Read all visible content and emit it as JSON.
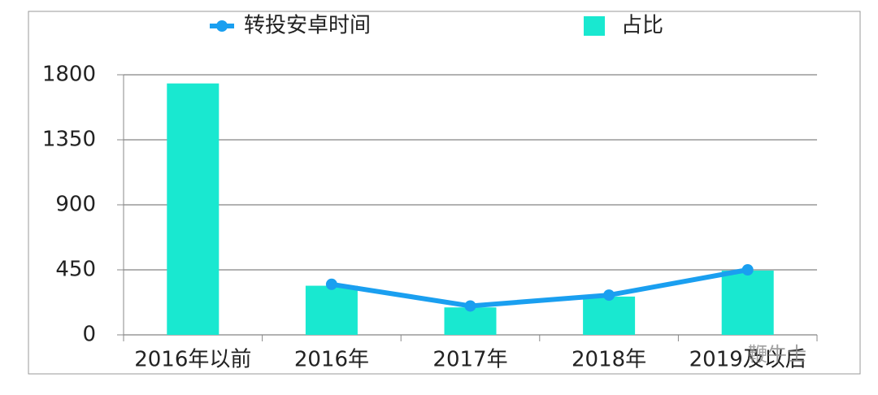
{
  "chart_data": {
    "type": "bar_line",
    "categories": [
      "2016年以前",
      "2016年",
      "2017年",
      "2018年",
      "2019及以后"
    ],
    "series": [
      {
        "name": "转投安卓时间",
        "type": "line",
        "color": "#1a9ff0",
        "values": [
          null,
          350,
          200,
          275,
          450
        ]
      },
      {
        "name": "占比",
        "type": "bar",
        "color": "#19e8d0",
        "values": [
          1740,
          340,
          190,
          265,
          445
        ]
      }
    ],
    "ylim": [
      0,
      1800
    ],
    "yticks": [
      0,
      450,
      900,
      1350,
      1800
    ],
    "grid": true,
    "watermark": "鞭牛士"
  }
}
